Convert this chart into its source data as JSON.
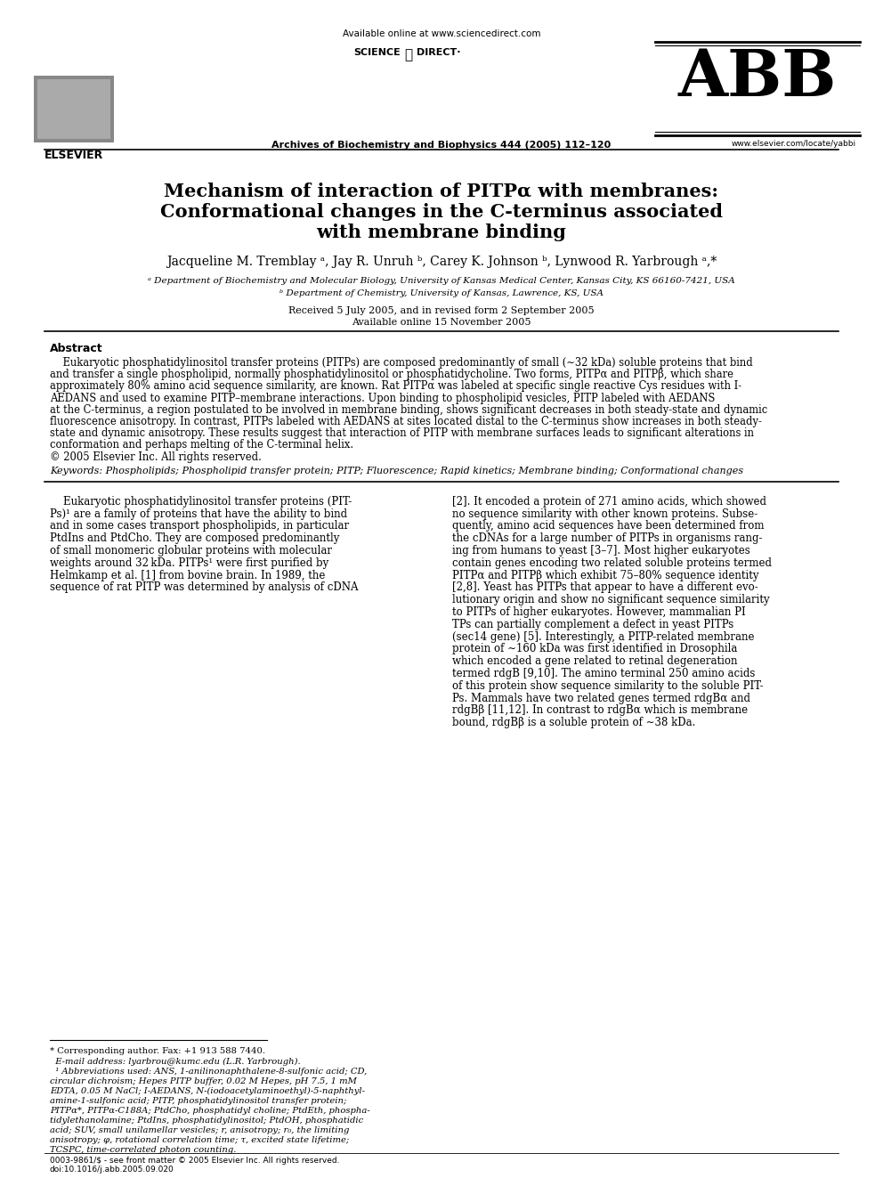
{
  "bg_color": "#ffffff",
  "header_available_online": "Available online at www.sciencedirect.com",
  "header_journal": "Archives of Biochemistry and Biophysics 444 (2005) 112–120",
  "header_abb": "ABB",
  "header_url": "www.elsevier.com/locate/yabbi",
  "header_elsevier": "ELSEVIER",
  "title_line1": "Mechanism of interaction of PITPα with membranes:",
  "title_line2": "Conformational changes in the C-terminus associated",
  "title_line3": "with membrane binding",
  "authors": "Jacqueline M. Tremblay ᵃ, Jay R. Unruh ᵇ, Carey K. Johnson ᵇ, Lynwood R. Yarbrough ᵃ,*",
  "affil_a": "ᵃ Department of Biochemistry and Molecular Biology, University of Kansas Medical Center, Kansas City, KS 66160-7421, USA",
  "affil_b": "ᵇ Department of Chemistry, University of Kansas, Lawrence, KS, USA",
  "received": "Received 5 July 2005, and in revised form 2 September 2005",
  "available": "Available online 15 November 2005",
  "abstract_title": "Abstract",
  "keywords_label": "Keywords:",
  "keywords_text": " Phospholipids; Phospholipid transfer protein; PITP; Fluorescence; Rapid kinetics; Membrane binding; Conformational changes",
  "col1_lines": [
    "    Eukaryotic phosphatidylinositol transfer proteins (PIT-",
    "Ps)¹ are a family of proteins that have the ability to bind",
    "and in some cases transport phospholipids, in particular",
    "PtdIns and PtdCho. They are composed predominantly",
    "of small monomeric globular proteins with molecular",
    "weights around 32 kDa. PITPs¹ were first purified by",
    "Helmkamp et al. [1] from bovine brain. In 1989, the",
    "sequence of rat PITP was determined by analysis of cDNA"
  ],
  "col2_lines": [
    "[2]. It encoded a protein of 271 amino acids, which showed",
    "no sequence similarity with other known proteins. Subse-",
    "quently, amino acid sequences have been determined from",
    "the cDNAs for a large number of PITPs in organisms rang-",
    "ing from humans to yeast [3–7]. Most higher eukaryotes",
    "contain genes encoding two related soluble proteins termed",
    "PITPα and PITPβ which exhibit 75–80% sequence identity",
    "[2,8]. Yeast has PITPs that appear to have a different evo-",
    "lutionary origin and show no significant sequence similarity",
    "to PITPs of higher eukaryotes. However, mammalian PI",
    "TPs can partially complement a defect in yeast PITPs",
    "(sec14 gene) [5]. Interestingly, a PITP-related membrane",
    "protein of ∼160 kDa was first identified in Drosophila",
    "which encoded a gene related to retinal degeneration",
    "termed rdgB [9,10]. The amino terminal 250 amino acids",
    "of this protein show sequence similarity to the soluble PIT-",
    "Ps. Mammals have two related genes termed rdgBα and",
    "rdgBβ [11,12]. In contrast to rdgBα which is membrane",
    "bound, rdgBβ is a soluble protein of ∼38 kDa."
  ],
  "abstract_lines": [
    "    Eukaryotic phosphatidylinositol transfer proteins (PITPs) are composed predominantly of small (∼32 kDa) soluble proteins that bind",
    "and transfer a single phospholipid, normally phosphatidylinositol or phosphatidycholine. Two forms, PITPα and PITPβ, which share",
    "approximately 80% amino acid sequence similarity, are known. Rat PITPα was labeled at specific single reactive Cys residues with I-",
    "AEDANS and used to examine PITP–membrane interactions. Upon binding to phospholipid vesicles, PITP labeled with AEDANS",
    "at the C-terminus, a region postulated to be involved in membrane binding, shows significant decreases in both steady-state and dynamic",
    "fluorescence anisotropy. In contrast, PITPs labeled with AEDANS at sites located distal to the C-terminus show increases in both steady-",
    "state and dynamic anisotropy. These results suggest that interaction of PITP with membrane surfaces leads to significant alterations in",
    "conformation and perhaps melting of the C-terminal helix.",
    "© 2005 Elsevier Inc. All rights reserved."
  ],
  "fn_star": "* Corresponding author. Fax: +1 913 588 7440.",
  "fn_email": "  E-mail address: lyarbrou@kumc.edu (L.R. Yarbrough).",
  "fn_1_lines": [
    "  ¹ Abbreviations used: ANS, 1-anilinonaphthalene-8-sulfonic acid; CD,",
    "circular dichroism; Hepes PITP buffer, 0.02 M Hepes, pH 7.5, 1 mM",
    "EDTA, 0.05 M NaCl; I-AEDANS, N-(iodoacetylaminoethyl)-5-naphthyl-",
    "amine-1-sulfonic acid; PITP, phosphatidylinositol transfer protein;",
    "PITPα*, PITPα-C188A; PtdCho, phosphatidyl choline; PtdEth, phospha-",
    "tidylethanolamine; PtdIns, phosphatidylinositol; PtdOH, phosphatidic",
    "acid; SUV, small unilamellar vesicles; r, anisotropy; r₀, the limiting",
    "anisotropy; φ, rotational correlation time; τ, excited state lifetime;",
    "TCSPC, time-correlated photon counting."
  ],
  "footer1": "0003-9861/$ - see front matter © 2005 Elsevier Inc. All rights reserved.",
  "footer2": "doi:10.1016/j.abb.2005.09.020"
}
